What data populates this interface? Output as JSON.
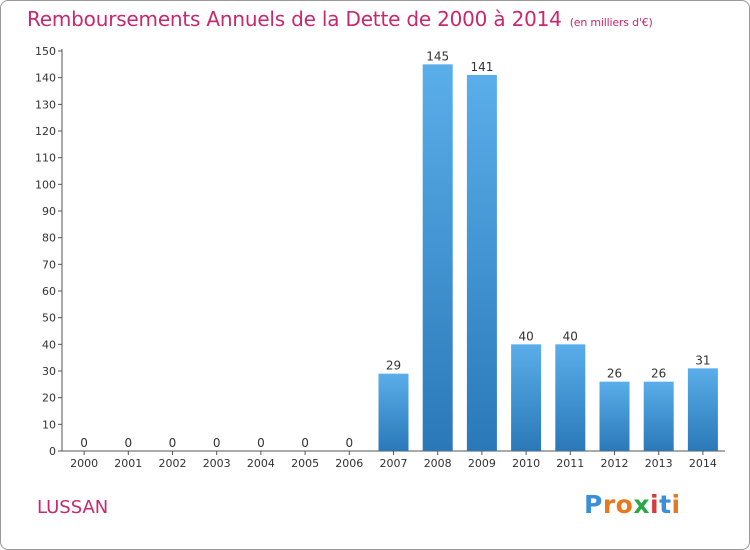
{
  "chart_data": {
    "type": "bar",
    "title": "Remboursements Annuels de la Dette de 2000 à 2014",
    "subtitle": "(en milliers d'€)",
    "categories": [
      "2000",
      "2001",
      "2002",
      "2003",
      "2004",
      "2005",
      "2006",
      "2007",
      "2008",
      "2009",
      "2010",
      "2011",
      "2012",
      "2013",
      "2014"
    ],
    "values": [
      0,
      0,
      0,
      0,
      0,
      0,
      0,
      29,
      145,
      141,
      40,
      40,
      26,
      26,
      31
    ],
    "ylim": [
      0,
      150
    ],
    "yticks": [
      0,
      10,
      20,
      30,
      40,
      50,
      60,
      70,
      80,
      90,
      100,
      110,
      120,
      130,
      140,
      150
    ],
    "grid": false,
    "legend": "none",
    "bar_color_light": "#5aaeea",
    "bar_color_dark": "#2a78b8"
  },
  "footer": {
    "commune": "LUSSAN"
  },
  "logo": {
    "text": "Proxiti",
    "colors": [
      "#3a8fd8",
      "#e8771e",
      "#e8771e",
      "#2aa84a",
      "#d83a3a",
      "#3a8fd8",
      "#e8771e"
    ]
  }
}
